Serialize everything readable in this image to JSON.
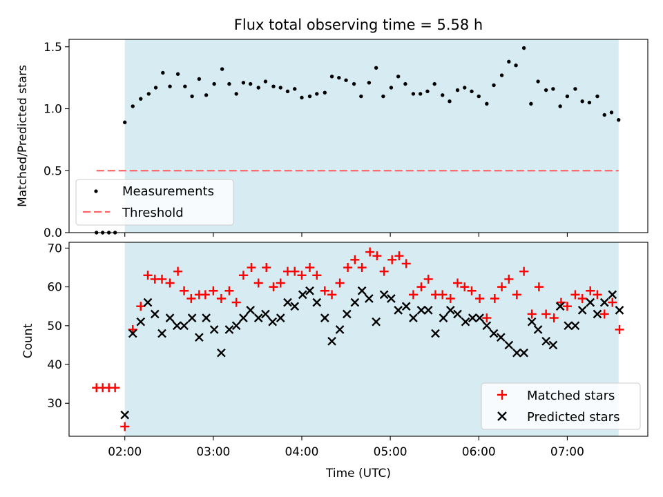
{
  "chart_data": [
    {
      "type": "scatter",
      "title": "Flux total observing time = 5.58 h",
      "xlabel": "",
      "ylabel": "Matched/Predicted stars",
      "xlim": [
        1.37,
        7.91
      ],
      "ylim": [
        0.0,
        1.56
      ],
      "x_ticks": [
        2,
        3,
        4,
        5,
        6,
        7
      ],
      "y_ticks": [
        0.0,
        0.5,
        1.0,
        1.5
      ],
      "y_tick_labels": [
        "0.0",
        "0.5",
        "1.0",
        "1.5"
      ],
      "shaded_span": [
        2.0,
        7.58
      ],
      "threshold": {
        "value": 0.5,
        "x_range": [
          1.68,
          7.58
        ],
        "color": "#ff6666"
      },
      "legend": {
        "position": "lower-left",
        "entries": [
          "Measurements",
          "Threshold"
        ]
      },
      "series": [
        {
          "name": "Measurements",
          "color": "#000000",
          "points": [
            [
              1.68,
              0.0
            ],
            [
              1.75,
              0.0
            ],
            [
              1.82,
              0.0
            ],
            [
              1.89,
              0.0
            ],
            [
              2.0,
              0.89
            ],
            [
              2.09,
              1.02
            ],
            [
              2.18,
              1.08
            ],
            [
              2.27,
              1.12
            ],
            [
              2.35,
              1.17
            ],
            [
              2.43,
              1.29
            ],
            [
              2.51,
              1.18
            ],
            [
              2.6,
              1.28
            ],
            [
              2.68,
              1.18
            ],
            [
              2.76,
              1.1
            ],
            [
              2.84,
              1.24
            ],
            [
              2.92,
              1.11
            ],
            [
              3.01,
              1.2
            ],
            [
              3.1,
              1.32
            ],
            [
              3.18,
              1.2
            ],
            [
              3.26,
              1.12
            ],
            [
              3.34,
              1.21
            ],
            [
              3.42,
              1.2
            ],
            [
              3.51,
              1.17
            ],
            [
              3.59,
              1.22
            ],
            [
              3.68,
              1.18
            ],
            [
              3.76,
              1.17
            ],
            [
              3.84,
              1.14
            ],
            [
              3.92,
              1.16
            ],
            [
              4.0,
              1.09
            ],
            [
              4.09,
              1.1
            ],
            [
              4.17,
              1.12
            ],
            [
              4.26,
              1.13
            ],
            [
              4.34,
              1.26
            ],
            [
              4.42,
              1.25
            ],
            [
              4.5,
              1.23
            ],
            [
              4.59,
              1.2
            ],
            [
              4.67,
              1.1
            ],
            [
              4.76,
              1.21
            ],
            [
              4.84,
              1.33
            ],
            [
              4.92,
              1.1
            ],
            [
              5.01,
              1.17
            ],
            [
              5.09,
              1.26
            ],
            [
              5.17,
              1.2
            ],
            [
              5.26,
              1.12
            ],
            [
              5.34,
              1.12
            ],
            [
              5.42,
              1.14
            ],
            [
              5.5,
              1.2
            ],
            [
              5.59,
              1.11
            ],
            [
              5.67,
              1.06
            ],
            [
              5.76,
              1.15
            ],
            [
              5.84,
              1.17
            ],
            [
              5.92,
              1.14
            ],
            [
              6.0,
              1.1
            ],
            [
              6.09,
              1.04
            ],
            [
              6.17,
              1.19
            ],
            [
              6.26,
              1.27
            ],
            [
              6.34,
              1.38
            ],
            [
              6.42,
              1.35
            ],
            [
              6.51,
              1.49
            ],
            [
              6.59,
              1.04
            ],
            [
              6.67,
              1.22
            ],
            [
              6.76,
              1.15
            ],
            [
              6.84,
              1.16
            ],
            [
              6.92,
              1.02
            ],
            [
              7.0,
              1.1
            ],
            [
              7.09,
              1.16
            ],
            [
              7.17,
              1.06
            ],
            [
              7.25,
              1.05
            ],
            [
              7.34,
              1.1
            ],
            [
              7.42,
              0.95
            ],
            [
              7.5,
              0.97
            ],
            [
              7.58,
              0.91
            ]
          ]
        }
      ]
    },
    {
      "type": "scatter",
      "title": "",
      "xlabel": "Time (UTC)",
      "ylabel": "Count",
      "xlim": [
        1.37,
        7.91
      ],
      "ylim": [
        21.5,
        71.5
      ],
      "x_ticks": [
        2,
        3,
        4,
        5,
        6,
        7
      ],
      "x_tick_labels": [
        "02:00",
        "03:00",
        "04:00",
        "05:00",
        "06:00",
        "07:00"
      ],
      "y_ticks": [
        30,
        40,
        50,
        60,
        70
      ],
      "y_tick_labels": [
        "30",
        "40",
        "50",
        "60",
        "70"
      ],
      "shaded_span": [
        2.0,
        7.58
      ],
      "legend": {
        "position": "lower-right",
        "entries": [
          "Matched stars",
          "Predicted stars"
        ]
      },
      "series": [
        {
          "name": "Matched stars",
          "marker": "plus",
          "color": "#ff0000",
          "points": [
            [
              1.68,
              34
            ],
            [
              1.75,
              34
            ],
            [
              1.82,
              34
            ],
            [
              1.89,
              34
            ],
            [
              2.0,
              24
            ],
            [
              2.09,
              49
            ],
            [
              2.18,
              55
            ],
            [
              2.26,
              63
            ],
            [
              2.34,
              62
            ],
            [
              2.42,
              62
            ],
            [
              2.51,
              61
            ],
            [
              2.6,
              64
            ],
            [
              2.67,
              59
            ],
            [
              2.75,
              57
            ],
            [
              2.84,
              58
            ],
            [
              2.91,
              58
            ],
            [
              3.0,
              59
            ],
            [
              3.09,
              57
            ],
            [
              3.18,
              59
            ],
            [
              3.26,
              56
            ],
            [
              3.34,
              63
            ],
            [
              3.43,
              65
            ],
            [
              3.51,
              61
            ],
            [
              3.6,
              65
            ],
            [
              3.68,
              60
            ],
            [
              3.76,
              61
            ],
            [
              3.84,
              64
            ],
            [
              3.92,
              64
            ],
            [
              4.0,
              63
            ],
            [
              4.09,
              65
            ],
            [
              4.17,
              63
            ],
            [
              4.26,
              59
            ],
            [
              4.34,
              58
            ],
            [
              4.43,
              61
            ],
            [
              4.52,
              65
            ],
            [
              4.6,
              67
            ],
            [
              4.68,
              65
            ],
            [
              4.77,
              69
            ],
            [
              4.85,
              68
            ],
            [
              4.93,
              64
            ],
            [
              5.02,
              67
            ],
            [
              5.1,
              68
            ],
            [
              5.18,
              66
            ],
            [
              5.26,
              58
            ],
            [
              5.35,
              60
            ],
            [
              5.43,
              62
            ],
            [
              5.51,
              58
            ],
            [
              5.59,
              58
            ],
            [
              5.68,
              57
            ],
            [
              5.76,
              61
            ],
            [
              5.84,
              60
            ],
            [
              5.92,
              59
            ],
            [
              6.01,
              57
            ],
            [
              6.09,
              52
            ],
            [
              6.18,
              57
            ],
            [
              6.26,
              60
            ],
            [
              6.34,
              62
            ],
            [
              6.43,
              58
            ],
            [
              6.51,
              64
            ],
            [
              6.6,
              53
            ],
            [
              6.68,
              60
            ],
            [
              6.76,
              53
            ],
            [
              6.85,
              52
            ],
            [
              6.93,
              56
            ],
            [
              7.0,
              55
            ],
            [
              7.09,
              58
            ],
            [
              7.17,
              57
            ],
            [
              7.26,
              59
            ],
            [
              7.34,
              58
            ],
            [
              7.42,
              53
            ],
            [
              7.51,
              56
            ],
            [
              7.59,
              49
            ]
          ]
        },
        {
          "name": "Predicted stars",
          "marker": "x",
          "color": "#000000",
          "points": [
            [
              2.0,
              27
            ],
            [
              2.09,
              48
            ],
            [
              2.18,
              51
            ],
            [
              2.26,
              56
            ],
            [
              2.34,
              53
            ],
            [
              2.42,
              48
            ],
            [
              2.51,
              52
            ],
            [
              2.59,
              50
            ],
            [
              2.67,
              50
            ],
            [
              2.76,
              52
            ],
            [
              2.84,
              47
            ],
            [
              2.92,
              52
            ],
            [
              3.01,
              49
            ],
            [
              3.09,
              43
            ],
            [
              3.18,
              49
            ],
            [
              3.26,
              50
            ],
            [
              3.34,
              52
            ],
            [
              3.42,
              54
            ],
            [
              3.51,
              52
            ],
            [
              3.59,
              53
            ],
            [
              3.67,
              51
            ],
            [
              3.76,
              52
            ],
            [
              3.84,
              56
            ],
            [
              3.92,
              55
            ],
            [
              4.01,
              58
            ],
            [
              4.09,
              59
            ],
            [
              4.17,
              56
            ],
            [
              4.26,
              52
            ],
            [
              4.34,
              46
            ],
            [
              4.43,
              49
            ],
            [
              4.51,
              53
            ],
            [
              4.6,
              56
            ],
            [
              4.68,
              59
            ],
            [
              4.76,
              57
            ],
            [
              4.84,
              51
            ],
            [
              4.93,
              58
            ],
            [
              5.01,
              57
            ],
            [
              5.09,
              54
            ],
            [
              5.18,
              55
            ],
            [
              5.26,
              52
            ],
            [
              5.35,
              54
            ],
            [
              5.43,
              54
            ],
            [
              5.51,
              48
            ],
            [
              5.6,
              52
            ],
            [
              5.68,
              54
            ],
            [
              5.76,
              53
            ],
            [
              5.85,
              51
            ],
            [
              5.93,
              52
            ],
            [
              6.01,
              52
            ],
            [
              6.09,
              50
            ],
            [
              6.17,
              48
            ],
            [
              6.25,
              47
            ],
            [
              6.34,
              45
            ],
            [
              6.43,
              43
            ],
            [
              6.51,
              43
            ],
            [
              6.6,
              51
            ],
            [
              6.67,
              49
            ],
            [
              6.76,
              46
            ],
            [
              6.84,
              45
            ],
            [
              6.92,
              55
            ],
            [
              7.01,
              50
            ],
            [
              7.09,
              50
            ],
            [
              7.17,
              54
            ],
            [
              7.26,
              56
            ],
            [
              7.34,
              53
            ],
            [
              7.42,
              56
            ],
            [
              7.51,
              58
            ],
            [
              7.59,
              54
            ]
          ]
        }
      ]
    }
  ]
}
